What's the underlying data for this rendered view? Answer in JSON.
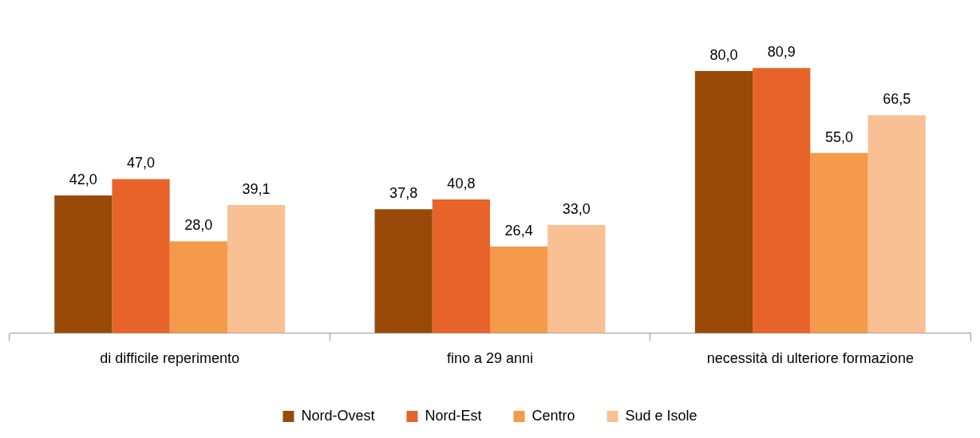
{
  "chart_data": {
    "type": "bar",
    "categories": [
      "di difficile reperimento",
      "fino a 29 anni",
      "necessità di ulteriore formazione"
    ],
    "series": [
      {
        "name": "Nord-Ovest",
        "color": "#9a4a08",
        "values": [
          42.0,
          37.8,
          80.0
        ],
        "value_labels": [
          "42,0",
          "37,8",
          "80,0"
        ]
      },
      {
        "name": "Nord-Est",
        "color": "#e8632a",
        "values": [
          47.0,
          40.8,
          80.9
        ],
        "value_labels": [
          "47,0",
          "40,8",
          "80,9"
        ]
      },
      {
        "name": "Centro",
        "color": "#f5994a",
        "values": [
          28.0,
          26.4,
          55.0
        ],
        "value_labels": [
          "28,0",
          "26,4",
          "55,0"
        ]
      },
      {
        "name": "Sud e Isole",
        "color": "#f9c093",
        "values": [
          39.1,
          33.0,
          66.5
        ],
        "value_labels": [
          "39,1",
          "33,0",
          "66,5"
        ]
      }
    ],
    "tick_labels": "x",
    "grid": false,
    "legend": "bottom"
  }
}
